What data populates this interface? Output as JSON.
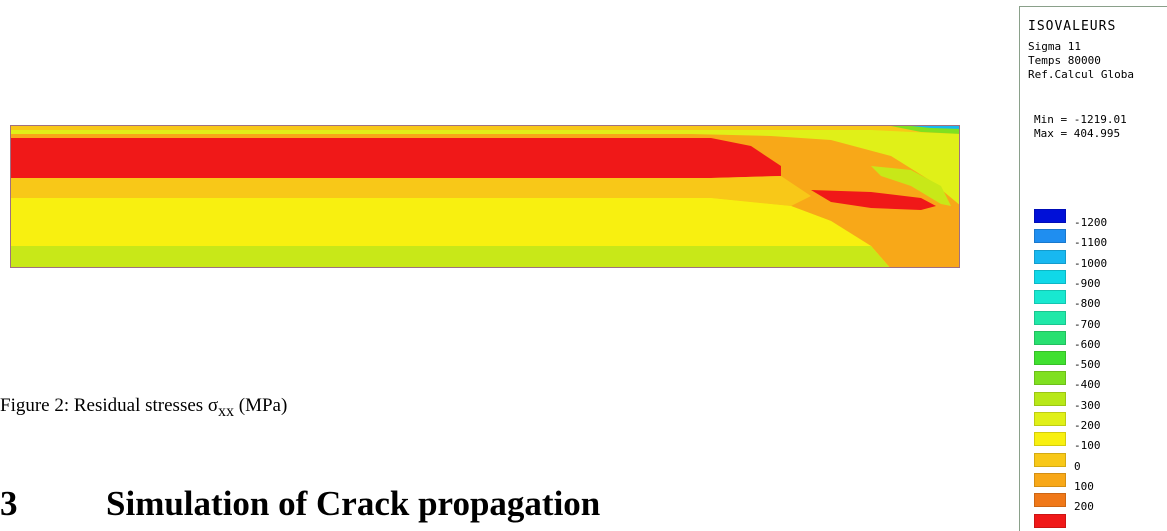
{
  "figure": {
    "caption_prefix": "Figure 2: Residual stresses σ",
    "caption_sub": "xx",
    "caption_suffix": " (MPa)"
  },
  "section": {
    "number": "3",
    "title": "Simulation of Crack propagation"
  },
  "legend": {
    "title": "ISOVALEURS",
    "lines": [
      "Sigma 11",
      "Temps 80000",
      "Ref.Calcul Globa"
    ],
    "min_text": "Min = -1219.01",
    "max_text": "Max = 404.995",
    "levels": [
      {
        "label": "-1200",
        "color": "#0010d8"
      },
      {
        "label": "-1100",
        "color": "#1f8ef0"
      },
      {
        "label": "-1000",
        "color": "#18b8f0"
      },
      {
        "label": "-900",
        "color": "#10d8e8"
      },
      {
        "label": "-800",
        "color": "#18e8d0"
      },
      {
        "label": "-700",
        "color": "#20e8a8"
      },
      {
        "label": "-600",
        "color": "#28e070"
      },
      {
        "label": "-500",
        "color": "#40e030"
      },
      {
        "label": "-400",
        "color": "#80e020"
      },
      {
        "label": "-300",
        "color": "#b8e818"
      },
      {
        "label": "-200",
        "color": "#e0f018"
      },
      {
        "label": "-100",
        "color": "#f8f010"
      },
      {
        "label": "0",
        "color": "#f8c818"
      },
      {
        "label": "100",
        "color": "#f8a818"
      },
      {
        "label": "200",
        "color": "#f07818"
      },
      {
        "label": "",
        "color": "#f01818"
      }
    ]
  }
}
